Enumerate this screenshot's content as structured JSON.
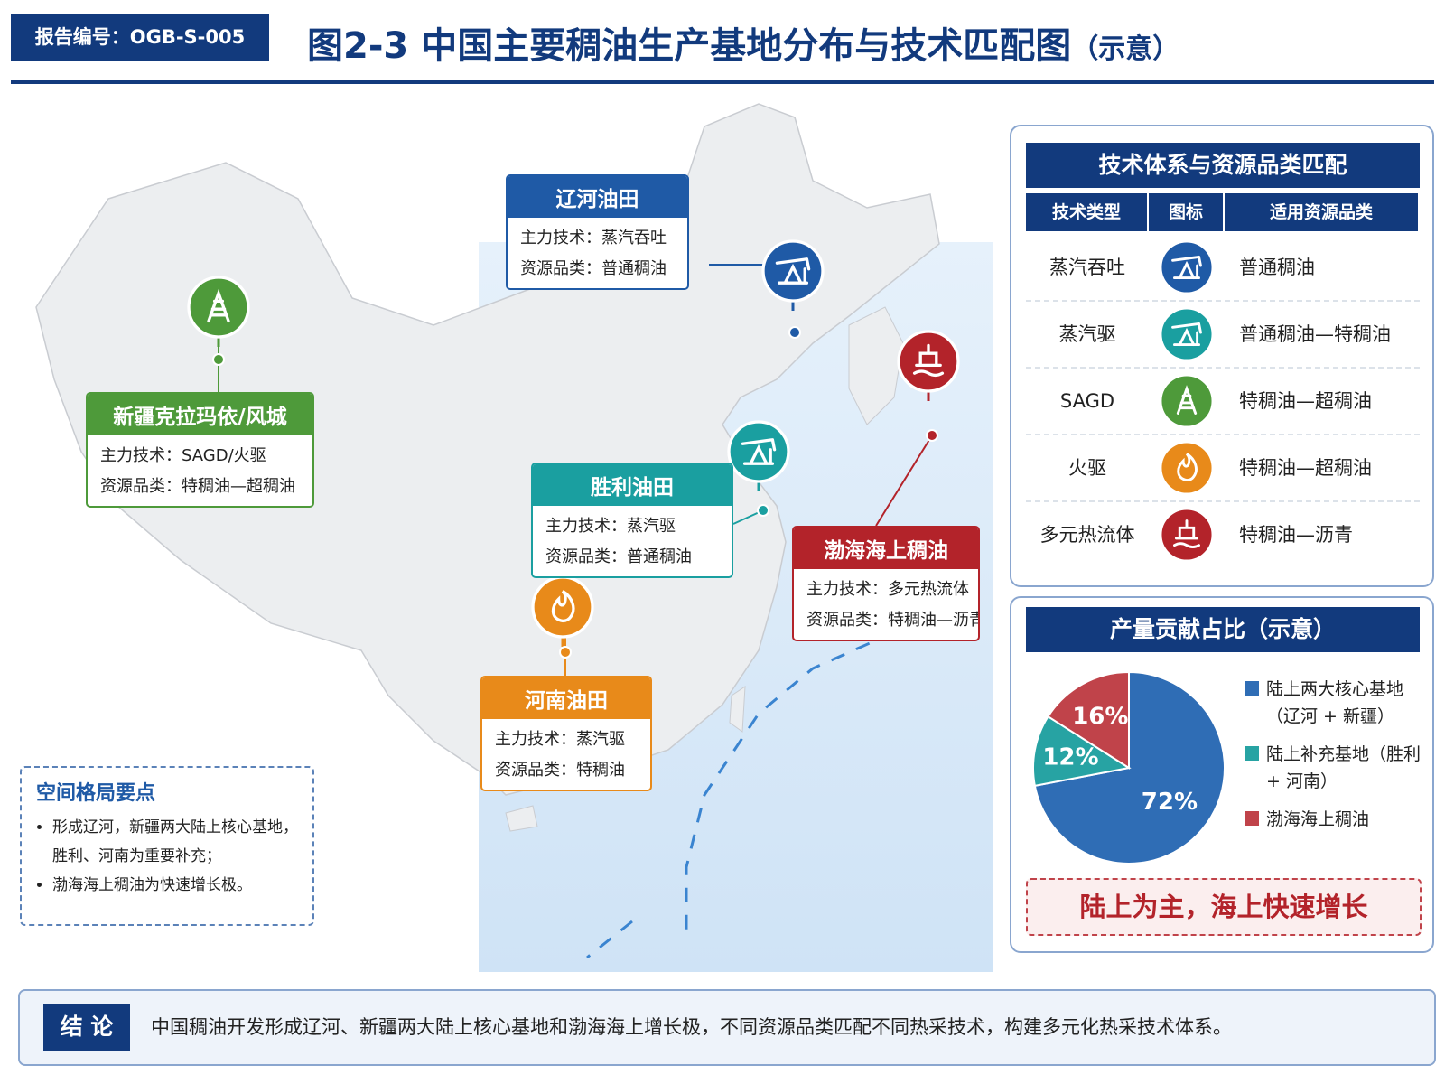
{
  "header": {
    "report_no": "报告编号：OGB-S-005",
    "title": "图2-3  中国主要稠油生产基地分布与技术匹配图",
    "title_note": "（示意）"
  },
  "bases": [
    {
      "name": "辽河油田",
      "tech": "主力技术：蒸汽吞吐",
      "resource": "资源品类：普通稠油"
    },
    {
      "name": "新疆克拉玛依/风城",
      "tech": "主力技术：SAGD/火驱",
      "resource": "资源品类：特稠油—超稠油"
    },
    {
      "name": "胜利油田",
      "tech": "主力技术：蒸汽驱",
      "resource": "资源品类：普通稠油"
    },
    {
      "name": "渤海海上稠油",
      "tech": "主力技术：多元热流体",
      "resource": "资源品类：特稠油—沥青"
    },
    {
      "name": "河南油田",
      "tech": "主力技术：蒸汽驱",
      "resource": "资源品类：特稠油"
    }
  ],
  "spatial_notes": {
    "title": "空间格局要点",
    "items": [
      "形成辽河，新疆两大陆上核心基地，胜利、河南为重要补充；",
      "渤海海上稠油为快速增长极。"
    ]
  },
  "tech_table": {
    "title": "技术体系与资源品类匹配",
    "columns": [
      "技术类型",
      "图标",
      "适用资源品类"
    ],
    "rows": [
      [
        "蒸汽吞吐",
        "普通稠油"
      ],
      [
        "蒸汽驱",
        "普通稠油—特稠油"
      ],
      [
        "SAGD",
        "特稠油—超稠油"
      ],
      [
        "火驱",
        "特稠油—超稠油"
      ],
      [
        "多元热流体",
        "特稠油—沥青"
      ]
    ]
  },
  "chart_data": {
    "type": "pie",
    "title": "产量贡献占比（示意）",
    "categories": [
      "陆上两大核心基地（辽河 + 新疆）",
      "陆上补充基地（胜利 + 河南）",
      "渤海海上稠油"
    ],
    "values": [
      72,
      12,
      16
    ],
    "value_labels": [
      "72%",
      "12%",
      "16%"
    ],
    "colors": [
      "#2f6db5",
      "#27a3a3",
      "#c0434a"
    ]
  },
  "callout": "陆上为主，海上快速增长",
  "conclusion": {
    "label": "结 论",
    "text": "中国稠油开发形成辽河、新疆两大陆上核心基地和渤海海上增长极，不同资源品类匹配不同热采技术，构建多元化热采技术体系。"
  }
}
